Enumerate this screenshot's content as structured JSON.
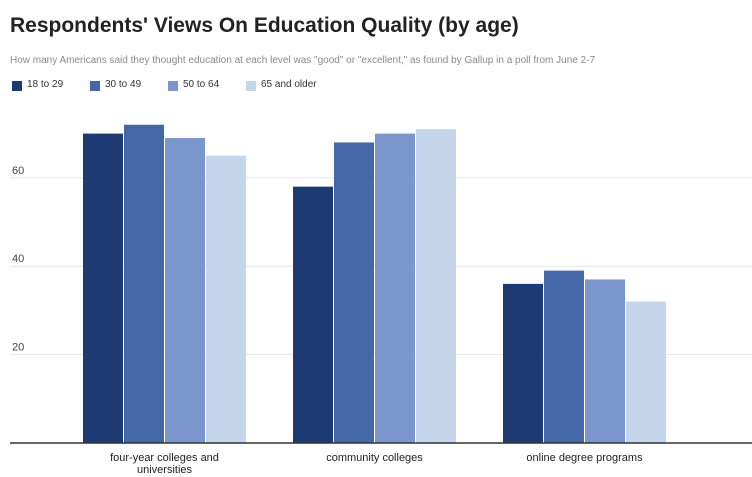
{
  "chart_data": {
    "type": "bar",
    "title": "Respondents' Views On Education Quality (by age)",
    "subtitle": "How many Americans said they thought education at each level was \"good\" or \"excellent,\" as found by Gallup in a poll from June 2-7",
    "categories": [
      "four-year colleges and universities",
      "community colleges",
      "online degree programs"
    ],
    "series": [
      {
        "name": "18 to 29",
        "values": [
          70,
          58,
          36
        ],
        "color": "#1e3a73"
      },
      {
        "name": "30 to 49",
        "values": [
          72,
          68,
          39
        ],
        "color": "#4467a8"
      },
      {
        "name": "50 to 64",
        "values": [
          69,
          70,
          37
        ],
        "color": "#7b95cd"
      },
      {
        "name": "65 and older",
        "values": [
          65,
          71,
          32
        ],
        "color": "#c5d6ec"
      }
    ],
    "yticks": [
      20,
      40,
      60
    ],
    "ylim": [
      0,
      75
    ],
    "grid": true,
    "legend_position": "top-left",
    "xlabel": "",
    "ylabel": ""
  }
}
